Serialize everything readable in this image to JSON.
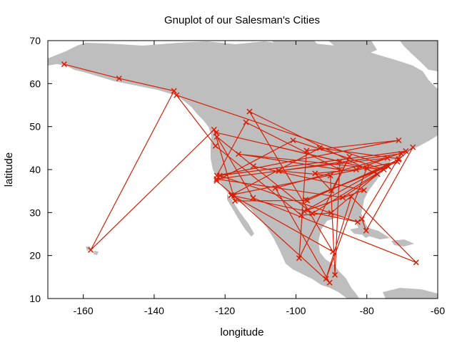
{
  "chart_data": {
    "type": "line",
    "title": "Gnuplot of our Salesman's Cities",
    "xlabel": "longitude",
    "ylabel": "latitude",
    "xlim": [
      -170,
      -60
    ],
    "ylim": [
      10,
      70
    ],
    "xticks": [
      "-160",
      "-140",
      "-120",
      "-100",
      "-80",
      "-60"
    ],
    "yticks": [
      "10",
      "20",
      "30",
      "40",
      "50",
      "60",
      "70"
    ],
    "grid": false,
    "legend": "none",
    "colors": {
      "route": "#d81e05",
      "land": "#bebebe",
      "axis": "#000000"
    },
    "background_map": "North America",
    "series": [
      {
        "marker": "x",
        "x": [
          -165.4,
          -149.9,
          -134.4,
          -157.9,
          -123.1,
          -117.2,
          -96.8,
          -71.1,
          -67.0,
          -80.2,
          -81.4,
          -70.3,
          -104.8,
          -122.4,
          -86.8,
          -73.9,
          -133.7,
          -122.7,
          -98.5,
          -90.1,
          -77.0,
          -113.1,
          -89.6,
          -118.2,
          -71.4,
          -97.3,
          -74.0,
          -95.4,
          -122.3,
          -112.1,
          -66.1,
          -84.4,
          -91.5,
          -80.0,
          -122.5,
          -87.6,
          -89.0,
          -90.3,
          -104.9,
          -74.2,
          -105.8,
          -90.5,
          -117.5,
          -122.4,
          -100.8,
          -75.2,
          -116.2,
          -87.6,
          -114.1,
          -122.3,
          -71.0,
          -97.0,
          -99.1,
          -84.9,
          -90.0,
          -94.6,
          -83.0,
          -69.0,
          -121.5,
          -82.6,
          -118.3,
          -93.3,
          -70.9,
          -97.7,
          -80.8,
          -112.0
        ],
        "y": [
          64.5,
          61.2,
          58.3,
          21.3,
          49.3,
          32.7,
          32.8,
          42.3,
          45.2,
          25.8,
          28.5,
          43.7,
          39.7,
          37.8,
          33.5,
          40.7,
          57.3,
          45.5,
          29.4,
          29.9,
          38.9,
          53.5,
          20.9,
          34.1,
          41.8,
          33.0,
          40.7,
          29.8,
          47.6,
          33.4,
          18.4,
          33.7,
          14.6,
          40.4,
          48.6,
          41.9,
          15.5,
          38.6,
          39.7,
          42.7,
          35.7,
          13.7,
          33.9,
          37.4,
          46.8,
          40.0,
          43.6,
          40.0,
          51.0,
          38.6,
          46.8,
          44.4,
          19.4,
          43.0,
          35.1,
          39.1,
          40.0,
          44.3,
          38.6,
          27.8,
          34.0,
          45.0,
          42.5,
          30.3,
          35.2,
          40.8
        ]
      }
    ]
  }
}
